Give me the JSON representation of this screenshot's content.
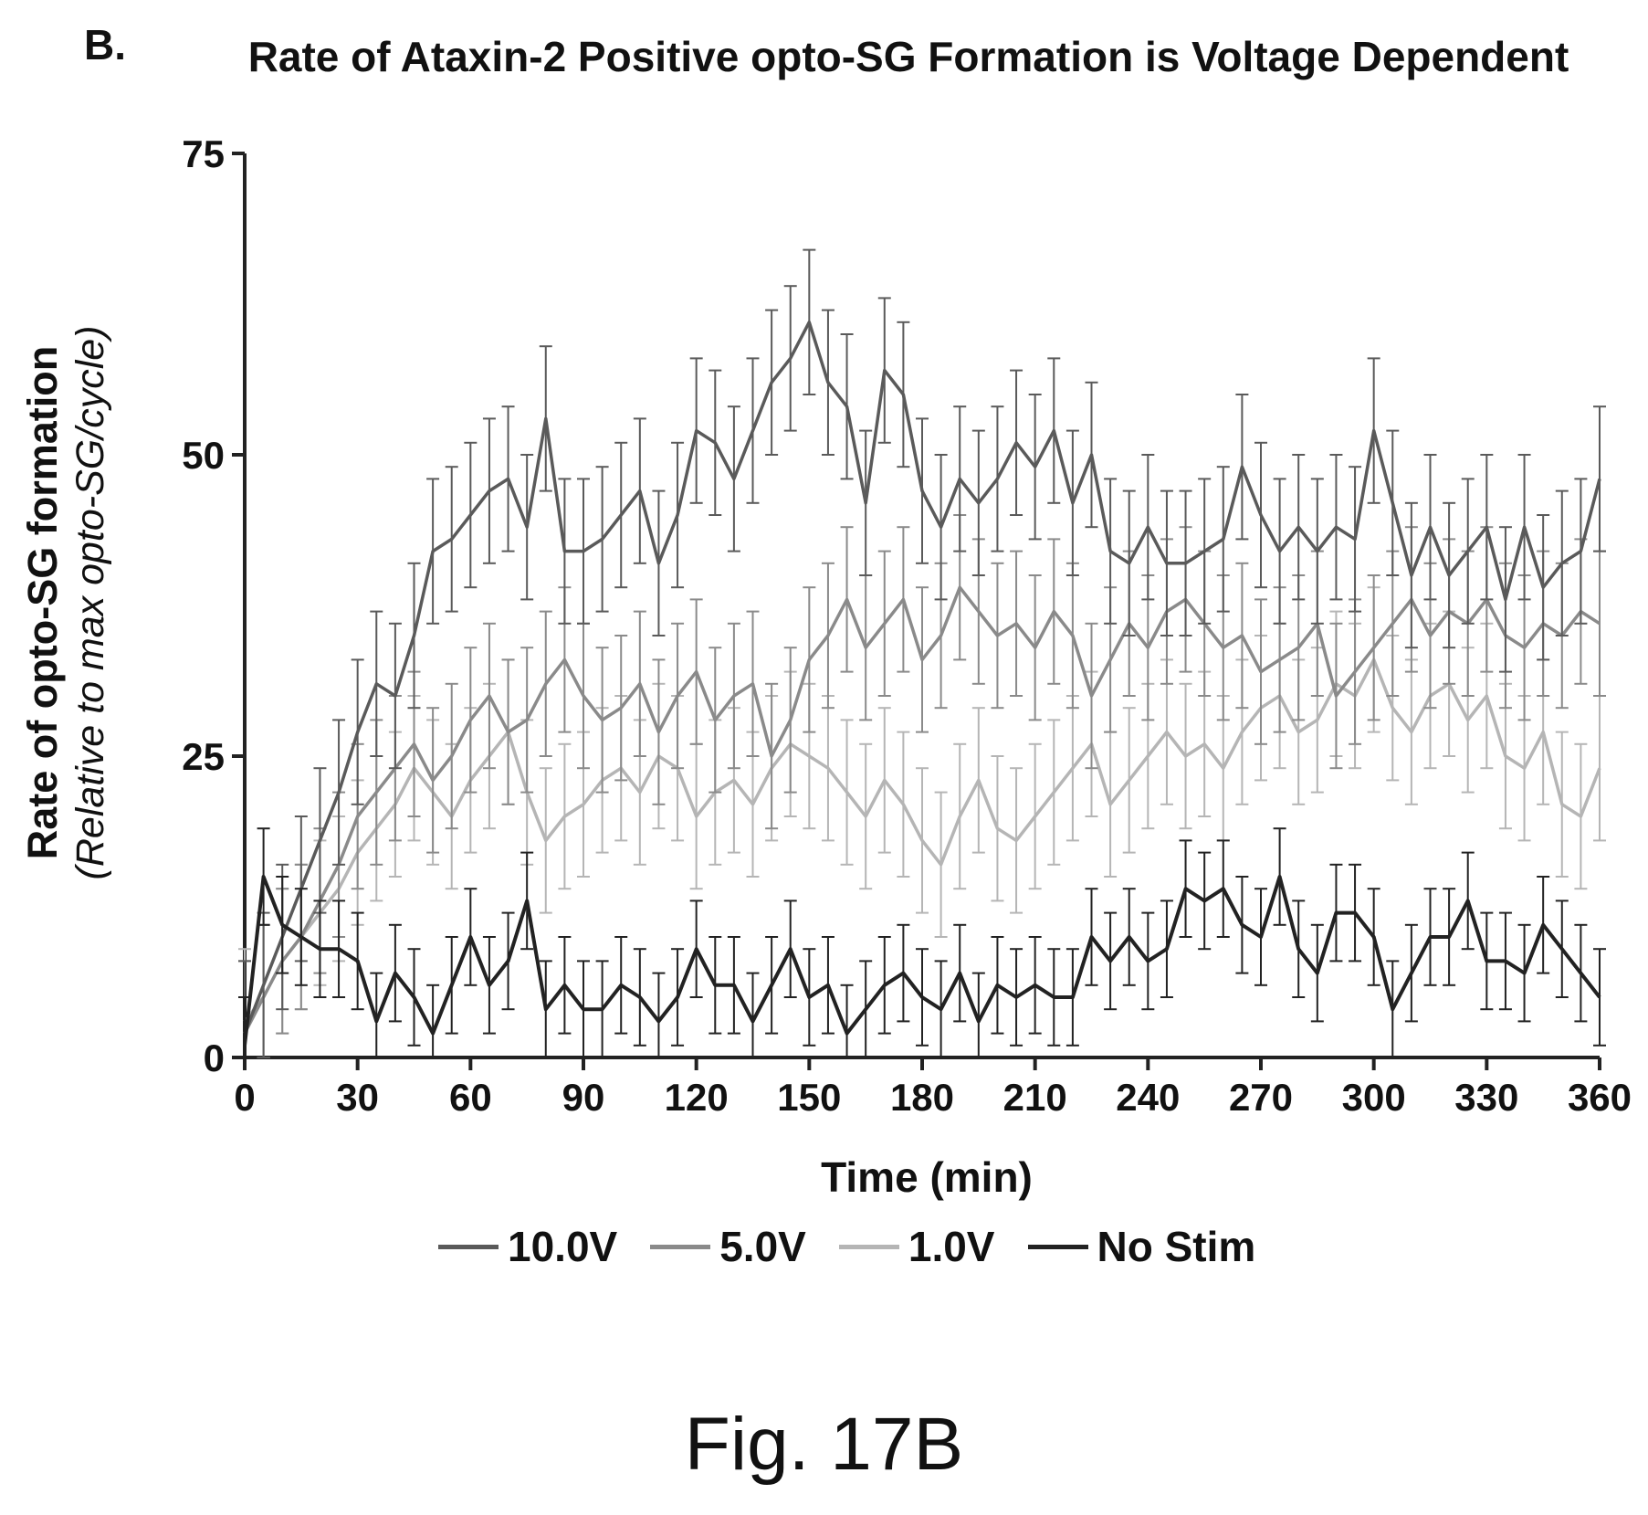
{
  "panel_label": "B.",
  "figure_label": "Fig. 17B",
  "chart_data": {
    "type": "line",
    "title": "Rate of Ataxin-2 Positive opto-SG Formation is Voltage Dependent",
    "xlabel": "Time (min)",
    "ylabel": "Rate of opto-SG formation",
    "ylabel_sub": "(Relative to max opto-SG/cycle)",
    "xlim": [
      0,
      360
    ],
    "ylim": [
      0,
      75
    ],
    "xticks": [
      0,
      30,
      60,
      90,
      120,
      150,
      180,
      210,
      240,
      270,
      300,
      330,
      360
    ],
    "yticks": [
      0,
      25,
      50,
      75
    ],
    "grid": false,
    "legend_position": "bottom",
    "x": [
      0,
      5,
      10,
      15,
      20,
      25,
      30,
      35,
      40,
      45,
      50,
      55,
      60,
      65,
      70,
      75,
      80,
      85,
      90,
      95,
      100,
      105,
      110,
      115,
      120,
      125,
      130,
      135,
      140,
      145,
      150,
      155,
      160,
      165,
      170,
      175,
      180,
      185,
      190,
      195,
      200,
      205,
      210,
      215,
      220,
      225,
      230,
      235,
      240,
      245,
      250,
      255,
      260,
      265,
      270,
      275,
      280,
      285,
      290,
      295,
      300,
      305,
      310,
      315,
      320,
      325,
      330,
      335,
      340,
      345,
      350,
      355,
      360
    ],
    "series": [
      {
        "name": "10.0V",
        "color": "#5a5a5a",
        "error": 6,
        "values": [
          2,
          6,
          10,
          14,
          18,
          22,
          27,
          31,
          30,
          35,
          42,
          43,
          45,
          47,
          48,
          44,
          53,
          42,
          42,
          43,
          45,
          47,
          41,
          45,
          52,
          51,
          48,
          52,
          56,
          58,
          61,
          56,
          54,
          46,
          57,
          55,
          47,
          44,
          48,
          46,
          48,
          51,
          49,
          52,
          46,
          50,
          42,
          41,
          44,
          41,
          41,
          42,
          43,
          49,
          45,
          42,
          44,
          42,
          44,
          43,
          52,
          46,
          40,
          44,
          40,
          42,
          44,
          38,
          44,
          39,
          41,
          42,
          48
        ]
      },
      {
        "name": "5.0V",
        "color": "#8a8a8a",
        "error": 6,
        "values": [
          2,
          5,
          8,
          10,
          13,
          16,
          20,
          22,
          24,
          26,
          23,
          25,
          28,
          30,
          27,
          28,
          31,
          33,
          30,
          28,
          29,
          31,
          27,
          30,
          32,
          28,
          30,
          31,
          25,
          28,
          33,
          35,
          38,
          34,
          36,
          38,
          33,
          35,
          39,
          37,
          35,
          36,
          34,
          37,
          35,
          30,
          33,
          36,
          34,
          37,
          38,
          36,
          34,
          35,
          32,
          33,
          34,
          36,
          30,
          32,
          34,
          36,
          38,
          35,
          37,
          36,
          38,
          35,
          34,
          36,
          35,
          37,
          36
        ]
      },
      {
        "name": "1.0V",
        "color": "#b5b5b5",
        "error": 6,
        "values": [
          3,
          5,
          8,
          10,
          12,
          14,
          17,
          19,
          21,
          24,
          22,
          20,
          23,
          25,
          27,
          22,
          18,
          20,
          21,
          23,
          24,
          22,
          25,
          24,
          20,
          22,
          23,
          21,
          24,
          26,
          25,
          24,
          22,
          20,
          23,
          21,
          18,
          16,
          20,
          23,
          19,
          18,
          20,
          22,
          24,
          26,
          21,
          23,
          25,
          27,
          25,
          26,
          24,
          27,
          29,
          30,
          27,
          28,
          31,
          30,
          33,
          29,
          27,
          30,
          31,
          28,
          30,
          25,
          24,
          27,
          21,
          20,
          24
        ]
      },
      {
        "name": "No Stim",
        "color": "#222222",
        "error": 4,
        "values": [
          1,
          15,
          11,
          10,
          9,
          9,
          8,
          3,
          7,
          5,
          2,
          6,
          10,
          6,
          8,
          13,
          4,
          6,
          4,
          4,
          6,
          5,
          3,
          5,
          9,
          6,
          6,
          3,
          6,
          9,
          5,
          6,
          2,
          4,
          6,
          7,
          5,
          4,
          7,
          3,
          6,
          5,
          6,
          5,
          5,
          10,
          8,
          10,
          8,
          9,
          14,
          13,
          14,
          11,
          10,
          15,
          9,
          7,
          12,
          12,
          10,
          4,
          7,
          10,
          10,
          13,
          8,
          8,
          7,
          11,
          9,
          7,
          5
        ]
      }
    ]
  }
}
